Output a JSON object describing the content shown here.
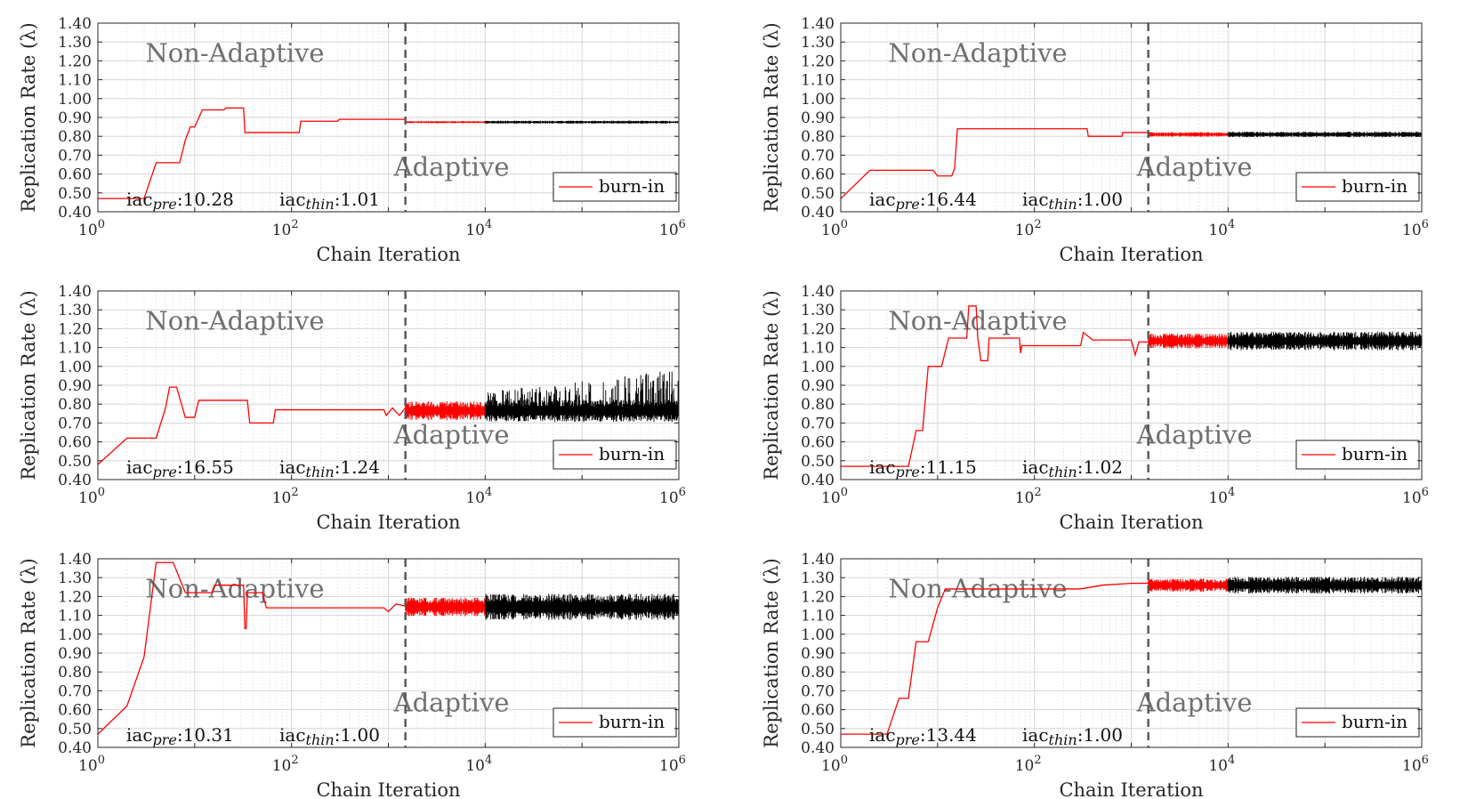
{
  "chart_data": [
    {
      "type": "line",
      "xlabel": "Chain Iteration",
      "ylabel": "Replication Rate (λ)",
      "xscale": "log",
      "xlim": [
        1,
        1000000
      ],
      "ylim": [
        0.4,
        1.4
      ],
      "xticks": [
        "10^0",
        "10^2",
        "10^4",
        "10^6"
      ],
      "yticks": [
        "0.40",
        "0.50",
        "0.60",
        "0.70",
        "0.80",
        "0.90",
        "1.00",
        "1.10",
        "1.20",
        "1.30",
        "1.40"
      ],
      "grid": true,
      "divider_x": 1500,
      "region_left": "Non-Adaptive",
      "region_right": "Adaptive",
      "iac_pre": ":10.28",
      "iac_thin": ":1.01",
      "legend": {
        "label": "burn-in",
        "color": "#ff0000",
        "position": "bottom-right"
      },
      "series": [
        {
          "color": "#ff0000",
          "points": [
            [
              1,
              0.47
            ],
            [
              3,
              0.47
            ],
            [
              4,
              0.66
            ],
            [
              7,
              0.66
            ],
            [
              8,
              0.78
            ],
            [
              9,
              0.85
            ],
            [
              10,
              0.85
            ],
            [
              12,
              0.94
            ],
            [
              20,
              0.94
            ],
            [
              21,
              0.95
            ],
            [
              32,
              0.95
            ],
            [
              33,
              0.82
            ],
            [
              120,
              0.82
            ],
            [
              125,
              0.88
            ],
            [
              300,
              0.88
            ],
            [
              310,
              0.89
            ],
            [
              1500,
              0.89
            ]
          ]
        },
        {
          "color": "#ff0000",
          "band": [
            1500,
            10000
          ],
          "level": 0.875,
          "halfwidth": 0.006
        },
        {
          "color": "#000000",
          "band": [
            10000,
            1000000
          ],
          "level": 0.875,
          "halfwidth": 0.008
        }
      ]
    },
    {
      "type": "line",
      "xlabel": "Chain Iteration",
      "ylabel": "Replication Rate (λ)",
      "xscale": "log",
      "xlim": [
        1,
        1000000
      ],
      "ylim": [
        0.4,
        1.4
      ],
      "xticks": [
        "10^0",
        "10^2",
        "10^4",
        "10^6"
      ],
      "yticks": [
        "0.40",
        "0.50",
        "0.60",
        "0.70",
        "0.80",
        "0.90",
        "1.00",
        "1.10",
        "1.20",
        "1.30",
        "1.40"
      ],
      "grid": true,
      "divider_x": 1500,
      "region_left": "Non-Adaptive",
      "region_right": "Adaptive",
      "iac_pre": ":16.44",
      "iac_thin": ":1.00",
      "legend": {
        "label": "burn-in",
        "color": "#ff0000",
        "position": "bottom-right"
      },
      "series": [
        {
          "color": "#ff0000",
          "points": [
            [
              1,
              0.47
            ],
            [
              2,
              0.62
            ],
            [
              9,
              0.62
            ],
            [
              10,
              0.59
            ],
            [
              14,
              0.59
            ],
            [
              15,
              0.63
            ],
            [
              16,
              0.84
            ],
            [
              350,
              0.84
            ],
            [
              360,
              0.8
            ],
            [
              800,
              0.8
            ],
            [
              820,
              0.82
            ],
            [
              1500,
              0.82
            ]
          ]
        },
        {
          "color": "#ff0000",
          "band": [
            1500,
            10000
          ],
          "level": 0.81,
          "halfwidth": 0.012
        },
        {
          "color": "#000000",
          "band": [
            10000,
            1000000
          ],
          "level": 0.81,
          "halfwidth": 0.015
        }
      ]
    },
    {
      "type": "line",
      "xlabel": "Chain Iteration",
      "ylabel": "Replication Rate (λ)",
      "xscale": "log",
      "xlim": [
        1,
        1000000
      ],
      "ylim": [
        0.4,
        1.4
      ],
      "xticks": [
        "10^0",
        "10^2",
        "10^4",
        "10^6"
      ],
      "yticks": [
        "0.40",
        "0.50",
        "0.60",
        "0.70",
        "0.80",
        "0.90",
        "1.00",
        "1.10",
        "1.20",
        "1.30",
        "1.40"
      ],
      "grid": true,
      "divider_x": 1500,
      "region_left": "Non-Adaptive",
      "region_right": "Adaptive",
      "iac_pre": ":16.55",
      "iac_thin": ":1.24",
      "legend": {
        "label": "burn-in",
        "color": "#ff0000",
        "position": "bottom-right"
      },
      "series": [
        {
          "color": "#ff0000",
          "points": [
            [
              1,
              0.48
            ],
            [
              2,
              0.62
            ],
            [
              4,
              0.62
            ],
            [
              5,
              0.78
            ],
            [
              5.5,
              0.89
            ],
            [
              6.5,
              0.89
            ],
            [
              8,
              0.73
            ],
            [
              10,
              0.73
            ],
            [
              11,
              0.82
            ],
            [
              35,
              0.82
            ],
            [
              37,
              0.7
            ],
            [
              65,
              0.7
            ],
            [
              68,
              0.77
            ],
            [
              900,
              0.77
            ],
            [
              950,
              0.74
            ],
            [
              1100,
              0.78
            ],
            [
              1300,
              0.74
            ],
            [
              1500,
              0.78
            ]
          ]
        },
        {
          "color": "#ff0000",
          "band": [
            1500,
            10000
          ],
          "level": 0.765,
          "halfwidth": 0.05
        },
        {
          "color": "#000000",
          "band": [
            10000,
            1000000
          ],
          "level": 0.765,
          "halfwidth": 0.06,
          "spikes": true
        }
      ]
    },
    {
      "type": "line",
      "xlabel": "Chain Iteration",
      "ylabel": "Replication Rate (λ)",
      "xscale": "log",
      "xlim": [
        1,
        1000000
      ],
      "ylim": [
        0.4,
        1.4
      ],
      "xticks": [
        "10^0",
        "10^2",
        "10^4",
        "10^6"
      ],
      "yticks": [
        "0.40",
        "0.50",
        "0.60",
        "0.70",
        "0.80",
        "0.90",
        "1.00",
        "1.10",
        "1.20",
        "1.30",
        "1.40"
      ],
      "grid": true,
      "divider_x": 1500,
      "region_left": "Non-Adaptive",
      "region_right": "Adaptive",
      "iac_pre": ":11.15",
      "iac_thin": ":1.02",
      "legend": {
        "label": "burn-in",
        "color": "#ff0000",
        "position": "bottom-right"
      },
      "series": [
        {
          "color": "#ff0000",
          "points": [
            [
              1,
              0.47
            ],
            [
              5,
              0.47
            ],
            [
              6,
              0.66
            ],
            [
              7,
              0.66
            ],
            [
              8,
              1.0
            ],
            [
              11,
              1.0
            ],
            [
              13,
              1.15
            ],
            [
              20,
              1.15
            ],
            [
              21,
              1.32
            ],
            [
              25,
              1.32
            ],
            [
              26,
              1.15
            ],
            [
              28,
              1.03
            ],
            [
              33,
              1.03
            ],
            [
              34,
              1.15
            ],
            [
              70,
              1.15
            ],
            [
              72,
              1.07
            ],
            [
              74,
              1.11
            ],
            [
              300,
              1.11
            ],
            [
              320,
              1.18
            ],
            [
              400,
              1.14
            ],
            [
              1000,
              1.14
            ],
            [
              1100,
              1.06
            ],
            [
              1200,
              1.13
            ],
            [
              1500,
              1.13
            ]
          ]
        },
        {
          "color": "#ff0000",
          "band": [
            1500,
            10000
          ],
          "level": 1.135,
          "halfwidth": 0.04
        },
        {
          "color": "#000000",
          "band": [
            10000,
            1000000
          ],
          "level": 1.135,
          "halfwidth": 0.05
        }
      ]
    },
    {
      "type": "line",
      "xlabel": "Chain Iteration",
      "ylabel": "Replication Rate (λ)",
      "xscale": "log",
      "xlim": [
        1,
        1000000
      ],
      "ylim": [
        0.4,
        1.4
      ],
      "xticks": [
        "10^0",
        "10^2",
        "10^4",
        "10^6"
      ],
      "yticks": [
        "0.40",
        "0.50",
        "0.60",
        "0.70",
        "0.80",
        "0.90",
        "1.00",
        "1.10",
        "1.20",
        "1.30",
        "1.40"
      ],
      "grid": true,
      "divider_x": 1500,
      "region_left": "Non-Adaptive",
      "region_right": "Adaptive",
      "iac_pre": ":10.31",
      "iac_thin": ":1.00",
      "legend": {
        "label": "burn-in",
        "color": "#ff0000",
        "position": "bottom-right"
      },
      "series": [
        {
          "color": "#ff0000",
          "points": [
            [
              1,
              0.47
            ],
            [
              2,
              0.62
            ],
            [
              3,
              0.88
            ],
            [
              4,
              1.38
            ],
            [
              6,
              1.38
            ],
            [
              8,
              1.22
            ],
            [
              15,
              1.22
            ],
            [
              16,
              1.26
            ],
            [
              32,
              1.26
            ],
            [
              33,
              1.03
            ],
            [
              34,
              1.03
            ],
            [
              35,
              1.22
            ],
            [
              50,
              1.22
            ],
            [
              55,
              1.14
            ],
            [
              900,
              1.14
            ],
            [
              1000,
              1.12
            ],
            [
              1200,
              1.16
            ],
            [
              1500,
              1.15
            ]
          ]
        },
        {
          "color": "#ff0000",
          "band": [
            1500,
            10000
          ],
          "level": 1.145,
          "halfwidth": 0.05
        },
        {
          "color": "#000000",
          "band": [
            10000,
            1000000
          ],
          "level": 1.145,
          "halfwidth": 0.07
        }
      ]
    },
    {
      "type": "line",
      "xlabel": "Chain Iteration",
      "ylabel": "Replication Rate (λ)",
      "xscale": "log",
      "xlim": [
        1,
        1000000
      ],
      "ylim": [
        0.4,
        1.4
      ],
      "xticks": [
        "10^0",
        "10^2",
        "10^4",
        "10^6"
      ],
      "yticks": [
        "0.40",
        "0.50",
        "0.60",
        "0.70",
        "0.80",
        "0.90",
        "1.00",
        "1.10",
        "1.20",
        "1.30",
        "1.40"
      ],
      "grid": true,
      "divider_x": 1500,
      "region_left": "Non-Adaptive",
      "region_right": "Adaptive",
      "iac_pre": ":13.44",
      "iac_thin": ":1.00",
      "legend": {
        "label": "burn-in",
        "color": "#ff0000",
        "position": "bottom-right"
      },
      "series": [
        {
          "color": "#ff0000",
          "points": [
            [
              1,
              0.47
            ],
            [
              3,
              0.47
            ],
            [
              4,
              0.66
            ],
            [
              5,
              0.66
            ],
            [
              6,
              0.96
            ],
            [
              8,
              0.96
            ],
            [
              10,
              1.14
            ],
            [
              12,
              1.24
            ],
            [
              300,
              1.24
            ],
            [
              500,
              1.26
            ],
            [
              1000,
              1.27
            ],
            [
              1500,
              1.27
            ]
          ]
        },
        {
          "color": "#ff0000",
          "band": [
            1500,
            10000
          ],
          "level": 1.26,
          "halfwidth": 0.035
        },
        {
          "color": "#000000",
          "band": [
            10000,
            1000000
          ],
          "level": 1.26,
          "halfwidth": 0.045
        }
      ]
    }
  ]
}
